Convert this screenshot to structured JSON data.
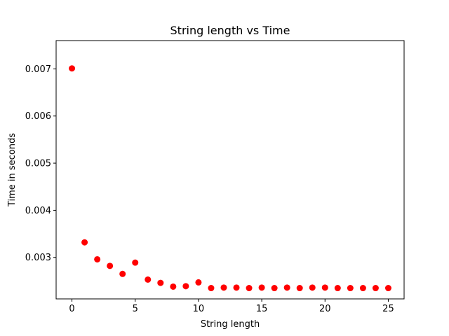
{
  "chart_data": {
    "type": "scatter",
    "title": "String length vs Time",
    "xlabel": "String length",
    "ylabel": "Time in seconds",
    "xlim": [
      -1.25,
      26.25
    ],
    "ylim": [
      0.00212,
      0.0076
    ],
    "x_ticks": [
      0,
      5,
      10,
      15,
      20,
      25
    ],
    "x_tick_labels": [
      "0",
      "5",
      "10",
      "15",
      "20",
      "25"
    ],
    "y_ticks": [
      0.003,
      0.004,
      0.005,
      0.006,
      0.007
    ],
    "y_tick_labels": [
      "0.003",
      "0.004",
      "0.005",
      "0.006",
      "0.007"
    ],
    "grid": false,
    "legend": "none",
    "marker_color": "#ff0000",
    "series": [
      {
        "x": [
          0,
          1,
          2,
          3,
          4,
          5,
          6,
          7,
          8,
          9,
          10,
          11,
          12,
          13,
          14,
          15,
          16,
          17,
          18,
          19,
          20,
          21,
          22,
          23,
          24,
          25
        ],
        "y": [
          0.00701,
          0.00332,
          0.00296,
          0.00282,
          0.00265,
          0.00289,
          0.00253,
          0.00246,
          0.00238,
          0.00239,
          0.00247,
          0.00235,
          0.00236,
          0.00236,
          0.00235,
          0.00236,
          0.00235,
          0.00236,
          0.00235,
          0.00236,
          0.00236,
          0.00235,
          0.00235,
          0.00235,
          0.00235,
          0.00235
        ]
      }
    ]
  }
}
